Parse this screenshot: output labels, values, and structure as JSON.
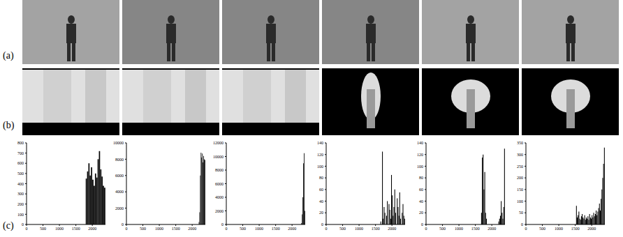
{
  "row_labels": [
    "(a)",
    "(b)",
    "(c)"
  ],
  "chart_data": [
    {
      "type": "histogram",
      "color": "#000000",
      "xlim": [
        0,
        2400
      ],
      "xticks": [
        0,
        500,
        1000,
        1500,
        2000
      ],
      "ylim": [
        0,
        800
      ],
      "yticks": [
        0,
        100,
        200,
        300,
        400,
        500,
        600,
        700,
        800
      ],
      "bins": [
        1800,
        1840,
        1880,
        1920,
        1960,
        2000,
        2040,
        2080,
        2120,
        2160,
        2200,
        2240,
        2280,
        2320,
        2360,
        2400
      ],
      "values": [
        450,
        520,
        600,
        480,
        560,
        440,
        380,
        500,
        460,
        640,
        720,
        540,
        470,
        380,
        360
      ]
    },
    {
      "type": "histogram",
      "color": "#000000",
      "xlim": [
        0,
        2400
      ],
      "xticks": [
        0,
        500,
        1000,
        1500,
        2000
      ],
      "ylim": [
        0,
        10000
      ],
      "yticks": [
        0,
        2000,
        4000,
        6000,
        8000,
        10000
      ],
      "bins": [
        2200,
        2220,
        2240,
        2260,
        2280,
        2300,
        2320,
        2340,
        2360,
        2380,
        2400
      ],
      "values": [
        300,
        1500,
        6000,
        8800,
        8200,
        8700,
        7600,
        8400,
        8000,
        7900
      ]
    },
    {
      "type": "histogram",
      "color": "#000000",
      "xlim": [
        0,
        2400
      ],
      "xticks": [
        0,
        500,
        1000,
        1500,
        2000
      ],
      "ylim": [
        0,
        12000
      ],
      "yticks": [
        0,
        2000,
        4000,
        6000,
        8000,
        10000,
        12000
      ],
      "bins": [
        2280,
        2300,
        2320,
        2340,
        2360,
        2380,
        2400
      ],
      "values": [
        200,
        1500,
        4000,
        9000,
        10500,
        2000
      ]
    },
    {
      "type": "histogram",
      "color": "#000000",
      "xlim": [
        0,
        2400
      ],
      "xticks": [
        0,
        500,
        1000,
        1500,
        2000
      ],
      "ylim": [
        0,
        140
      ],
      "yticks": [
        0,
        20,
        40,
        60,
        80,
        100,
        120,
        140
      ],
      "bins": [
        1650,
        1675,
        1700,
        1725,
        1750,
        1775,
        1800,
        1825,
        1850,
        1875,
        1900,
        1925,
        1950,
        1975,
        2000,
        2025,
        2050,
        2075,
        2100,
        2125,
        2150,
        2175,
        2200,
        2225,
        2250,
        2275,
        2300,
        2325,
        2350,
        2375,
        2400
      ],
      "values": [
        5,
        0,
        125,
        10,
        30,
        20,
        0,
        15,
        40,
        0,
        35,
        25,
        10,
        85,
        50,
        15,
        30,
        60,
        20,
        0,
        45,
        30,
        15,
        55,
        10,
        0,
        20,
        35,
        15,
        10
      ]
    },
    {
      "type": "histogram",
      "color": "#000000",
      "xlim": [
        0,
        2400
      ],
      "xticks": [
        0,
        500,
        1000,
        1500,
        2000
      ],
      "ylim": [
        0,
        140
      ],
      "yticks": [
        0,
        20,
        40,
        60,
        80,
        100,
        120,
        140
      ],
      "bins": [
        1650,
        1675,
        1700,
        1725,
        1750,
        1775,
        1800,
        1825,
        1850,
        1875,
        1900,
        1925,
        1950,
        1975,
        2000,
        2025,
        2050,
        2075,
        2100,
        2125,
        2150,
        2175,
        2200,
        2225,
        2250,
        2275,
        2300,
        2325,
        2350,
        2375,
        2400
      ],
      "values": [
        0,
        20,
        115,
        120,
        60,
        90,
        20,
        10,
        0,
        0,
        0,
        0,
        0,
        0,
        0,
        0,
        0,
        0,
        0,
        0,
        0,
        0,
        5,
        10,
        15,
        40,
        20,
        10,
        30,
        130
      ]
    },
    {
      "type": "histogram",
      "color": "#000000",
      "xlim": [
        0,
        2400
      ],
      "xticks": [
        0,
        500,
        1000,
        1500,
        2000
      ],
      "ylim": [
        0,
        350
      ],
      "yticks": [
        0,
        50,
        100,
        150,
        200,
        250,
        300,
        350
      ],
      "bins": [
        1500,
        1525,
        1550,
        1575,
        1600,
        1625,
        1650,
        1675,
        1700,
        1725,
        1750,
        1775,
        1800,
        1825,
        1850,
        1875,
        1900,
        1925,
        1950,
        1975,
        2000,
        2025,
        2050,
        2075,
        2100,
        2125,
        2150,
        2175,
        2200,
        2225,
        2250,
        2275,
        2300,
        2325,
        2350,
        2375,
        2400
      ],
      "values": [
        0,
        80,
        30,
        40,
        55,
        25,
        20,
        35,
        45,
        30,
        25,
        40,
        20,
        30,
        25,
        35,
        20,
        45,
        30,
        25,
        40,
        30,
        50,
        35,
        45,
        60,
        40,
        55,
        70,
        90,
        60,
        110,
        150,
        200,
        260,
        330
      ]
    }
  ]
}
